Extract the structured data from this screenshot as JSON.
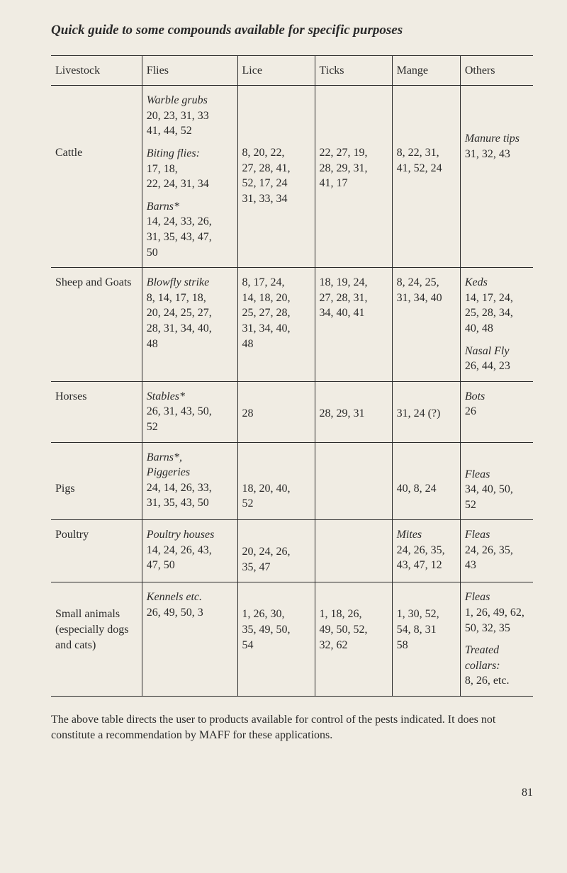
{
  "title": "Quick guide to some compounds available for specific purposes",
  "columns": [
    "Livestock",
    "Flies",
    "Lice",
    "Ticks",
    "Mange",
    "Others"
  ],
  "rows": [
    {
      "livestock": "Cattle",
      "flies": [
        {
          "label": "Warble grubs",
          "nums": "20, 23, 31, 33\n41, 44, 52"
        },
        {
          "label": "Biting flies:",
          "nums": "17, 18,\n22, 24, 31, 34"
        },
        {
          "label": "Barns*",
          "nums": "14, 24, 33, 26,\n31, 35, 43, 47,\n50"
        }
      ],
      "lice": "8, 20, 22,\n27, 28, 41,\n52, 17, 24\n31, 33, 34",
      "ticks": "22, 27, 19,\n28, 29, 31,\n41, 17",
      "mange": "8, 22, 31,\n41, 52, 24",
      "others": [
        {
          "label": "Manure tips",
          "nums": "31, 32, 43"
        }
      ]
    },
    {
      "livestock": "Sheep and Goats",
      "flies": [
        {
          "label": "Blowfly strike",
          "nums": "8, 14, 17, 18,\n20, 24, 25, 27,\n28, 31, 34, 40,\n48"
        }
      ],
      "lice": "8, 17, 24,\n14, 18, 20,\n25, 27, 28,\n31, 34, 40,\n48",
      "ticks": "18, 19, 24,\n27, 28, 31,\n34, 40, 41",
      "mange": "8, 24, 25,\n31, 34, 40",
      "others": [
        {
          "label": "Keds",
          "nums": "14, 17, 24,\n25, 28, 34,\n40, 48"
        },
        {
          "label": "Nasal Fly",
          "nums": "26, 44, 23"
        }
      ]
    },
    {
      "livestock": "Horses",
      "flies": [
        {
          "label": "Stables*",
          "nums": "26, 31, 43, 50,\n52"
        }
      ],
      "lice": "28",
      "ticks": "28, 29, 31",
      "mange": "31, 24 (?)",
      "others": [
        {
          "label": "Bots",
          "nums": "26"
        }
      ]
    },
    {
      "livestock": "Pigs",
      "flies": [
        {
          "label": "Barns*,\nPiggeries",
          "nums": "24, 14, 26, 33,\n31, 35, 43, 50"
        }
      ],
      "lice": "18, 20, 40,\n52",
      "ticks": "",
      "mange": "40, 8, 24",
      "others": [
        {
          "label": "Fleas",
          "nums": "34, 40, 50,\n52"
        }
      ]
    },
    {
      "livestock": "Poultry",
      "flies": [
        {
          "label": "Poultry houses",
          "nums": "14, 24, 26, 43,\n47, 50"
        }
      ],
      "lice": "20, 24, 26,\n35, 47",
      "ticks": "",
      "mange_label": "Mites",
      "mange": "24, 26, 35,\n43, 47, 12",
      "others": [
        {
          "label": "Fleas",
          "nums": "24, 26, 35,\n43"
        }
      ]
    },
    {
      "livestock": "Small animals (especially dogs and cats)",
      "flies": [
        {
          "label": "Kennels etc.",
          "nums": "26, 49, 50, 3"
        }
      ],
      "lice": "1, 26, 30,\n35, 49, 50,\n54",
      "ticks": "1, 18, 26,\n49, 50, 52,\n32, 62",
      "mange": "1, 30, 52,\n54, 8, 31\n58",
      "others": [
        {
          "label": "Fleas",
          "nums": "1, 26, 49, 62,\n50, 32, 35"
        },
        {
          "label": "Treated collars:",
          "nums": "8, 26, etc."
        }
      ]
    }
  ],
  "footnote": "The above table directs the user to products available for control of the pests indicated. It does not constitute a recommendation by MAFF for these applications.",
  "page_number": "81"
}
